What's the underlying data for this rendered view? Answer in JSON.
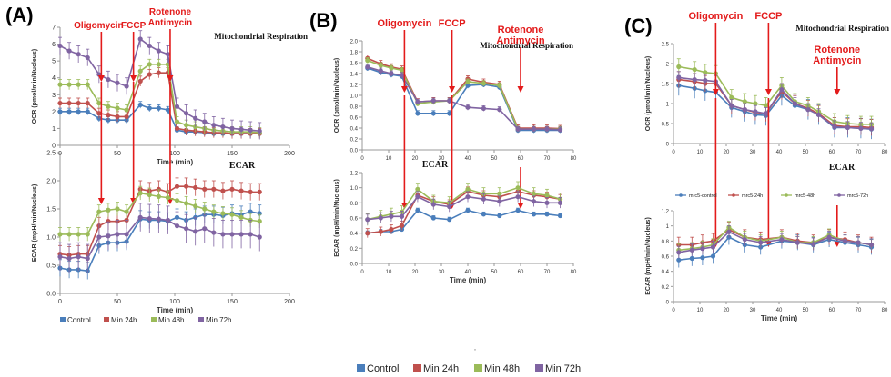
{
  "colors": {
    "control": "#4a7ebb",
    "min24": "#c0504d",
    "min48": "#9bbb59",
    "min72": "#8064a2",
    "arrow": "#e31b1b"
  },
  "bottom_legend": [
    "Control",
    "Min 24h",
    "Min 48h",
    "Min 72h"
  ],
  "dot_mark": "·",
  "chart_data": [
    {
      "panel": "(A)",
      "name": "A-OCR",
      "type": "line",
      "title": "Mitochondrial Respiration",
      "xlabel": "Time (min)",
      "ylabel": "OCR (pmol/min/Nucleus)",
      "xlim": [
        0,
        200
      ],
      "ylim": [
        0,
        7
      ],
      "xticks": [
        0,
        50,
        100,
        150,
        200
      ],
      "yticks": [
        0,
        1,
        2,
        3,
        4,
        5,
        6,
        7
      ],
      "ytick_labels": [
        "0",
        "1",
        "2",
        "3",
        "4",
        "5",
        "6",
        "7"
      ],
      "x": [
        0,
        8,
        16,
        24,
        34,
        42,
        50,
        58,
        70,
        78,
        86,
        94,
        102,
        110,
        118,
        126,
        134,
        142,
        150,
        158,
        166,
        174
      ],
      "series": [
        {
          "key": "control",
          "values": [
            2.0,
            2.0,
            2.0,
            2.0,
            1.6,
            1.5,
            1.5,
            1.5,
            2.4,
            2.2,
            2.2,
            2.1,
            0.9,
            0.8,
            0.8,
            0.75,
            0.7,
            0.7,
            0.7,
            0.7,
            0.7,
            0.7
          ],
          "err": 0.2
        },
        {
          "key": "min24",
          "values": [
            2.5,
            2.5,
            2.5,
            2.5,
            1.9,
            1.8,
            1.7,
            1.7,
            3.8,
            4.2,
            4.3,
            4.3,
            1.0,
            0.9,
            0.85,
            0.8,
            0.75,
            0.75,
            0.7,
            0.7,
            0.7,
            0.7
          ],
          "err": 0.3
        },
        {
          "key": "min48",
          "values": [
            3.6,
            3.6,
            3.6,
            3.6,
            2.5,
            2.3,
            2.2,
            2.1,
            4.4,
            4.8,
            4.8,
            4.8,
            1.4,
            1.2,
            1.1,
            1.0,
            0.9,
            0.85,
            0.8,
            0.8,
            0.8,
            0.75
          ],
          "err": 0.3
        },
        {
          "key": "min72",
          "values": [
            5.9,
            5.6,
            5.4,
            5.2,
            4.2,
            3.9,
            3.7,
            3.5,
            6.3,
            5.9,
            5.6,
            5.4,
            2.3,
            1.9,
            1.6,
            1.4,
            1.2,
            1.1,
            1.0,
            0.95,
            0.9,
            0.85
          ],
          "err": 0.5
        }
      ],
      "annotations": [
        {
          "text": "Oligomycin",
          "x": 36
        },
        {
          "text": "FCCP",
          "x": 64
        },
        {
          "text": "Rotenone",
          "x": 96,
          "line2": "Antimycin"
        }
      ]
    },
    {
      "panel": "",
      "name": "A-ECAR",
      "type": "line",
      "title": "ECAR",
      "xlabel": "Time (min)",
      "ylabel": "ECAR (mpH/min/Nucleus)",
      "xlim": [
        0,
        200
      ],
      "ylim": [
        0,
        2.5
      ],
      "xticks": [
        0,
        50,
        100,
        150,
        200
      ],
      "yticks": [
        0,
        0.5,
        1.0,
        1.5,
        2.0,
        2.5
      ],
      "ytick_labels": [
        "0.0",
        "0.5",
        "1.0",
        "1.5",
        "2.0",
        "2.5"
      ],
      "x": [
        0,
        8,
        16,
        24,
        34,
        42,
        50,
        58,
        70,
        78,
        86,
        94,
        102,
        110,
        118,
        126,
        134,
        142,
        150,
        158,
        166,
        174
      ],
      "series": [
        {
          "key": "control",
          "values": [
            0.45,
            0.42,
            0.42,
            0.4,
            0.85,
            0.9,
            0.9,
            0.92,
            1.32,
            1.3,
            1.3,
            1.28,
            1.35,
            1.3,
            1.35,
            1.4,
            1.4,
            1.38,
            1.42,
            1.4,
            1.45,
            1.42
          ],
          "err": 0.15
        },
        {
          "key": "min24",
          "values": [
            0.7,
            0.68,
            0.7,
            0.7,
            1.2,
            1.28,
            1.28,
            1.3,
            1.85,
            1.82,
            1.85,
            1.8,
            1.9,
            1.9,
            1.88,
            1.85,
            1.85,
            1.82,
            1.85,
            1.82,
            1.8,
            1.8
          ],
          "err": 0.15
        },
        {
          "key": "min48",
          "values": [
            1.05,
            1.05,
            1.05,
            1.05,
            1.45,
            1.48,
            1.5,
            1.45,
            1.78,
            1.75,
            1.72,
            1.7,
            1.65,
            1.6,
            1.55,
            1.5,
            1.45,
            1.42,
            1.4,
            1.35,
            1.3,
            1.28
          ],
          "err": 0.12
        },
        {
          "key": "min72",
          "values": [
            0.65,
            0.62,
            0.65,
            0.62,
            1.0,
            1.02,
            1.05,
            1.05,
            1.35,
            1.33,
            1.32,
            1.3,
            1.2,
            1.15,
            1.1,
            1.15,
            1.08,
            1.05,
            1.05,
            1.05,
            1.05,
            1.0
          ],
          "err": 0.25
        }
      ],
      "annotations": []
    },
    {
      "panel": "(B)",
      "name": "B-OCR",
      "type": "line",
      "title": "Mitochondrial Respiration",
      "xlabel": "",
      "ylabel": "OCR (pmol/min/Nucleus)",
      "xlim": [
        0,
        80
      ],
      "ylim": [
        0,
        2.0
      ],
      "xticks": [
        0,
        10,
        20,
        30,
        40,
        50,
        60,
        70,
        80
      ],
      "yticks": [
        0,
        0.2,
        0.4,
        0.6,
        0.8,
        1.0,
        1.2,
        1.4,
        1.6,
        1.8,
        2.0
      ],
      "ytick_labels": [
        "0.0",
        "0.2",
        "0.4",
        "0.6",
        "0.8",
        "1.0",
        "1.2",
        "1.4",
        "1.6",
        "1.8",
        "2.0"
      ],
      "x": [
        2,
        7,
        11,
        15,
        21,
        27,
        33,
        40,
        46,
        52,
        59,
        65,
        70,
        75
      ],
      "series": [
        {
          "key": "control",
          "values": [
            1.5,
            1.42,
            1.38,
            1.35,
            0.67,
            0.67,
            0.67,
            1.18,
            1.2,
            1.15,
            0.36,
            0.36,
            0.36,
            0.36
          ],
          "err": 0.05
        },
        {
          "key": "min24",
          "values": [
            1.68,
            1.58,
            1.52,
            1.48,
            0.88,
            0.9,
            0.9,
            1.3,
            1.24,
            1.2,
            0.4,
            0.4,
            0.4,
            0.39
          ],
          "err": 0.06
        },
        {
          "key": "min48",
          "values": [
            1.64,
            1.55,
            1.5,
            1.46,
            0.85,
            0.88,
            0.9,
            1.25,
            1.22,
            1.18,
            0.38,
            0.38,
            0.38,
            0.38
          ],
          "err": 0.05
        },
        {
          "key": "min72",
          "values": [
            1.52,
            1.45,
            1.4,
            1.37,
            0.88,
            0.9,
            0.9,
            0.78,
            0.76,
            0.74,
            0.38,
            0.38,
            0.38,
            0.37
          ],
          "err": 0.05
        }
      ],
      "annotations": [
        {
          "text": "Oligomycin",
          "x": 16
        },
        {
          "text": "FCCP",
          "x": 34
        },
        {
          "text": "Rotenone",
          "x": 60,
          "line2": "Antimycin"
        }
      ]
    },
    {
      "panel": "",
      "name": "B-ECAR",
      "type": "line",
      "title": "ECAR",
      "xlabel": "Time (min)",
      "ylabel": "ECAR (mpH/min/Nucleus)",
      "xlim": [
        0,
        80
      ],
      "ylim": [
        0,
        1.2
      ],
      "xticks": [
        0,
        10,
        20,
        30,
        40,
        50,
        60,
        70,
        80
      ],
      "yticks": [
        0,
        0.2,
        0.4,
        0.6,
        0.8,
        1.0,
        1.2
      ],
      "ytick_labels": [
        "0.0",
        "0.2",
        "0.4",
        "0.6",
        "0.8",
        "1.0",
        "1.2"
      ],
      "x": [
        2,
        7,
        11,
        15,
        21,
        27,
        33,
        40,
        46,
        52,
        59,
        65,
        70,
        75
      ],
      "series": [
        {
          "key": "control",
          "values": [
            0.4,
            0.42,
            0.42,
            0.45,
            0.7,
            0.6,
            0.58,
            0.7,
            0.65,
            0.63,
            0.7,
            0.65,
            0.65,
            0.63
          ],
          "err": 0.03
        },
        {
          "key": "min24",
          "values": [
            0.4,
            0.42,
            0.45,
            0.5,
            0.9,
            0.82,
            0.78,
            0.95,
            0.9,
            0.88,
            0.95,
            0.9,
            0.88,
            0.85
          ],
          "err": 0.06
        },
        {
          "key": "min48",
          "values": [
            0.58,
            0.62,
            0.65,
            0.68,
            0.98,
            0.82,
            0.8,
            0.98,
            0.92,
            0.92,
            1.0,
            0.92,
            0.9,
            0.85
          ],
          "err": 0.08
        },
        {
          "key": "min72",
          "values": [
            0.58,
            0.6,
            0.62,
            0.62,
            0.88,
            0.78,
            0.75,
            0.88,
            0.85,
            0.82,
            0.88,
            0.82,
            0.8,
            0.8
          ],
          "err": 0.07
        }
      ],
      "annotations": []
    },
    {
      "panel": "(C)",
      "name": "C-OCR",
      "type": "line",
      "title": "Mitochondrial Respiration",
      "xlabel": "",
      "ylabel": "OCR (pmol/min/Nucleus)",
      "xlim": [
        0,
        80
      ],
      "ylim": [
        0,
        2.5
      ],
      "xticks": [
        0,
        10,
        20,
        30,
        40,
        50,
        60,
        70,
        80
      ],
      "yticks": [
        0,
        0.5,
        1.0,
        1.5,
        2.0,
        2.5
      ],
      "ytick_labels": [
        "0",
        "0.5",
        "1",
        "1.5",
        "2",
        "2.5"
      ],
      "x": [
        2,
        8,
        12,
        16,
        22,
        27,
        31,
        35,
        41,
        46,
        51,
        55,
        61,
        66,
        71,
        75
      ],
      "series": [
        {
          "key": "control",
          "values": [
            1.45,
            1.38,
            1.32,
            1.28,
            0.9,
            0.8,
            0.72,
            0.7,
            1.2,
            0.95,
            0.85,
            0.72,
            0.4,
            0.4,
            0.38,
            0.36
          ],
          "err": 0.25
        },
        {
          "key": "min24",
          "values": [
            1.6,
            1.55,
            1.5,
            1.5,
            0.95,
            0.85,
            0.78,
            0.75,
            1.3,
            1.0,
            0.88,
            0.75,
            0.45,
            0.42,
            0.42,
            0.4
          ],
          "err": 0.2
        },
        {
          "key": "min48",
          "values": [
            1.92,
            1.85,
            1.78,
            1.75,
            1.15,
            1.05,
            1.0,
            0.95,
            1.45,
            1.05,
            0.95,
            0.8,
            0.55,
            0.5,
            0.48,
            0.48
          ],
          "err": 0.2
        },
        {
          "key": "min72",
          "values": [
            1.65,
            1.6,
            1.58,
            1.55,
            0.95,
            0.85,
            0.8,
            0.75,
            1.35,
            1.0,
            0.85,
            0.72,
            0.42,
            0.4,
            0.38,
            0.37
          ],
          "err": 0.15
        }
      ],
      "annotations": [
        {
          "text": "Oligomycin",
          "x": 16
        },
        {
          "text": "FCCP",
          "x": 36
        },
        {
          "text": "Rotenone",
          "x": 62,
          "line2": "Antimycin"
        }
      ]
    },
    {
      "panel": "",
      "name": "C-ECAR",
      "type": "line",
      "title": "ECAR",
      "xlabel": "Time (min)",
      "ylabel": "ECAR (mpH/min/Nucleus)",
      "xlim": [
        0,
        80
      ],
      "ylim": [
        0,
        1.2
      ],
      "xticks": [
        0,
        10,
        20,
        30,
        40,
        50,
        60,
        70,
        80
      ],
      "yticks": [
        0,
        0.2,
        0.4,
        0.6,
        0.8,
        1.0,
        1.2
      ],
      "ytick_labels": [
        "0",
        "0.2",
        "0.4",
        "0.6",
        "0.8",
        "1",
        "1.2"
      ],
      "x": [
        2,
        7,
        11,
        15,
        21,
        27,
        33,
        41,
        47,
        53,
        59,
        65,
        70,
        75
      ],
      "series": [
        {
          "key": "control",
          "values": [
            0.55,
            0.57,
            0.58,
            0.6,
            0.85,
            0.75,
            0.72,
            0.8,
            0.78,
            0.75,
            0.82,
            0.78,
            0.75,
            0.72
          ],
          "err": 0.1
        },
        {
          "key": "min24",
          "values": [
            0.75,
            0.75,
            0.78,
            0.8,
            0.95,
            0.85,
            0.82,
            0.85,
            0.8,
            0.78,
            0.85,
            0.82,
            0.78,
            0.75
          ],
          "err": 0.1
        },
        {
          "key": "min48",
          "values": [
            0.68,
            0.7,
            0.72,
            0.75,
            0.98,
            0.85,
            0.8,
            0.85,
            0.78,
            0.78,
            0.88,
            0.8,
            0.78,
            0.75
          ],
          "err": 0.08
        },
        {
          "key": "min72",
          "values": [
            0.65,
            0.68,
            0.7,
            0.72,
            0.92,
            0.82,
            0.78,
            0.82,
            0.78,
            0.76,
            0.85,
            0.8,
            0.78,
            0.75
          ],
          "err": 0.08
        }
      ],
      "legend": [
        {
          "key": "control",
          "label": "mrc5-control"
        },
        {
          "key": "min24",
          "label": "mrc5-24h"
        },
        {
          "key": "min48",
          "label": "mrc5-48h"
        },
        {
          "key": "min72",
          "label": "mrc5-72h"
        }
      ],
      "annotations": []
    }
  ]
}
